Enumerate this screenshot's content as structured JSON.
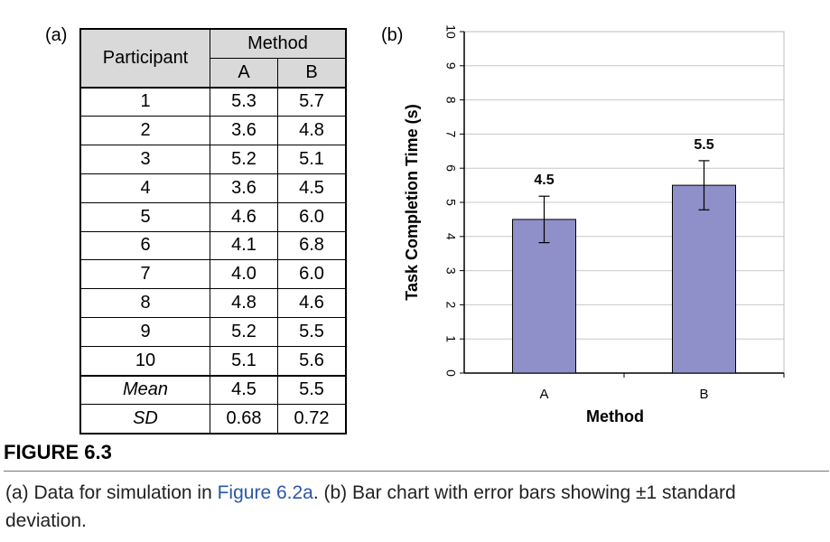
{
  "panel_a_label": "(a)",
  "panel_b_label": "(b)",
  "table": {
    "participant_header": "Participant",
    "method_header": "Method",
    "method_a": "A",
    "method_b": "B",
    "rows": [
      {
        "p": "1",
        "a": "5.3",
        "b": "5.7"
      },
      {
        "p": "2",
        "a": "3.6",
        "b": "4.8"
      },
      {
        "p": "3",
        "a": "5.2",
        "b": "5.1"
      },
      {
        "p": "4",
        "a": "3.6",
        "b": "4.5"
      },
      {
        "p": "5",
        "a": "4.6",
        "b": "6.0"
      },
      {
        "p": "6",
        "a": "4.1",
        "b": "6.8"
      },
      {
        "p": "7",
        "a": "4.0",
        "b": "6.0"
      },
      {
        "p": "8",
        "a": "4.8",
        "b": "4.6"
      },
      {
        "p": "9",
        "a": "5.2",
        "b": "5.5"
      },
      {
        "p": "10",
        "a": "5.1",
        "b": "5.6"
      }
    ],
    "summary": [
      {
        "p": "Mean",
        "a": "4.5",
        "b": "5.5"
      },
      {
        "p": "SD",
        "a": "0.68",
        "b": "0.72"
      }
    ]
  },
  "chart_data": {
    "type": "bar",
    "categories": [
      "A",
      "B"
    ],
    "values": [
      4.5,
      5.5
    ],
    "value_labels": [
      "4.5",
      "5.5"
    ],
    "error": [
      0.68,
      0.72
    ],
    "xlabel": "Method",
    "ylabel": "Task Completion Time (s)",
    "ylim": [
      0,
      10
    ],
    "yticks": [
      0,
      1,
      2,
      3,
      4,
      5,
      6,
      7,
      8,
      9,
      10
    ],
    "grid": true,
    "bar_color": "#8f8fc9",
    "bar_edge_color": "#000000",
    "tick_label_rotation": "rotated 90 degrees"
  },
  "figure_label": "FIGURE 6.3",
  "caption": {
    "part1": "(a) Data for simulation in ",
    "link": "Figure 6.2a",
    "part2": ". (b) Bar chart with error bars showing ±1 standard deviation."
  }
}
